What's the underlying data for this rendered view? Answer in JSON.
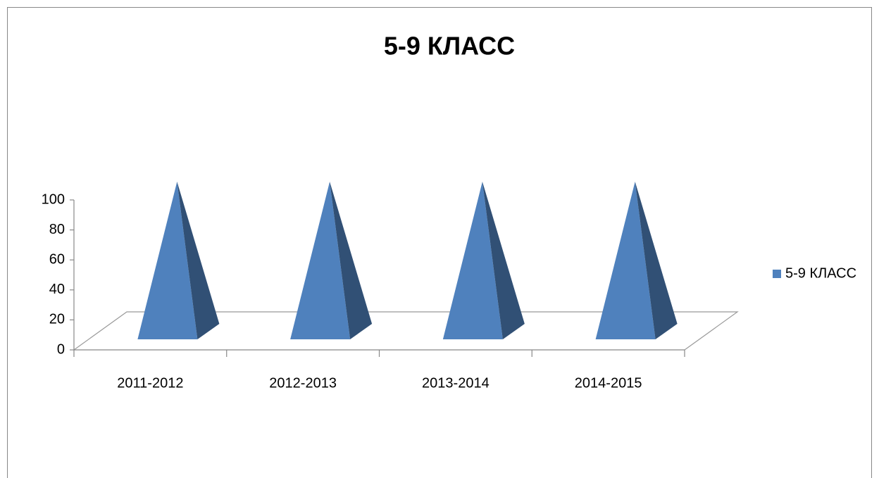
{
  "chart_data": {
    "type": "pyramid",
    "title": "5-9 КЛАСС",
    "categories": [
      "2011-2012",
      "2012-2013",
      "2013-2014",
      "2014-2015"
    ],
    "series": [
      {
        "name": "5-9 КЛАСС",
        "color": "#4f81bd",
        "values": [
          100,
          100,
          100,
          100
        ]
      }
    ],
    "ylim": [
      0,
      100
    ],
    "yticks": [
      0,
      20,
      40,
      60,
      80,
      100
    ],
    "grid": false,
    "legend": "right"
  }
}
